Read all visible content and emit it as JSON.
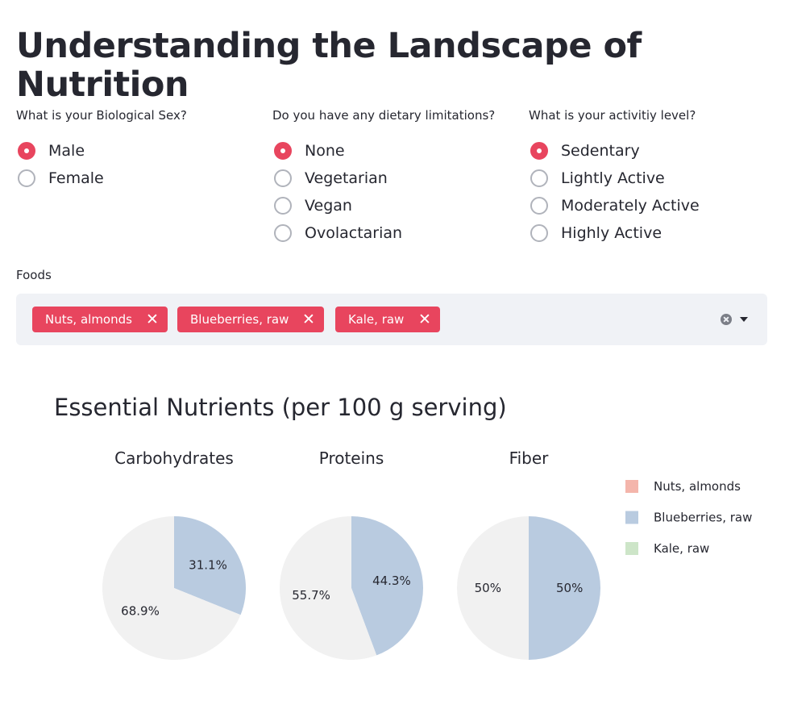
{
  "page": {
    "title": "Understanding the Landscape of Nutrition"
  },
  "questions": {
    "sex": {
      "label": "What is your Biological Sex?",
      "options": [
        "Male",
        "Female"
      ],
      "selected": "Male"
    },
    "diet": {
      "label": "Do you have any dietary limitations?",
      "options": [
        "None",
        "Vegetarian",
        "Vegan",
        "Ovolactarian"
      ],
      "selected": "None"
    },
    "activity": {
      "label": "What is your activitiy level?",
      "options": [
        "Sedentary",
        "Lightly Active",
        "Moderately Active",
        "Highly Active"
      ],
      "selected": "Sedentary"
    }
  },
  "foods": {
    "label": "Foods",
    "selected": [
      "Nuts, almonds",
      "Blueberries, raw",
      "Kale, raw"
    ],
    "remove_symbol": "✕"
  },
  "colors": {
    "accent": "#e8455e",
    "nuts": "#f4b5ab",
    "blueberries": "#b9cbe0",
    "kale": "#cde5c8",
    "rest": "#f1f1f1"
  },
  "chart_data": {
    "type": "pie",
    "title": "Essential Nutrients (per 100 g serving)",
    "legend": {
      "placement": "right",
      "entries": [
        {
          "name": "Nuts, almonds",
          "color": "#f4b5ab"
        },
        {
          "name": "Blueberries, raw",
          "color": "#b9cbe0"
        },
        {
          "name": "Kale, raw",
          "color": "#cde5c8"
        }
      ]
    },
    "charts": [
      {
        "title": "Carbohydrates",
        "slices": [
          {
            "label": "31.1%",
            "value": 31.1,
            "color": "#b9cbe0"
          },
          {
            "label": "68.9%",
            "value": 68.9,
            "color": "#f1f1f1"
          }
        ]
      },
      {
        "title": "Proteins",
        "slices": [
          {
            "label": "44.3%",
            "value": 44.3,
            "color": "#b9cbe0"
          },
          {
            "label": "55.7%",
            "value": 55.7,
            "color": "#f1f1f1"
          }
        ]
      },
      {
        "title": "Fiber",
        "slices": [
          {
            "label": "50%",
            "value": 50,
            "color": "#b9cbe0"
          },
          {
            "label": "50%",
            "value": 50,
            "color": "#f1f1f1"
          }
        ]
      }
    ]
  }
}
